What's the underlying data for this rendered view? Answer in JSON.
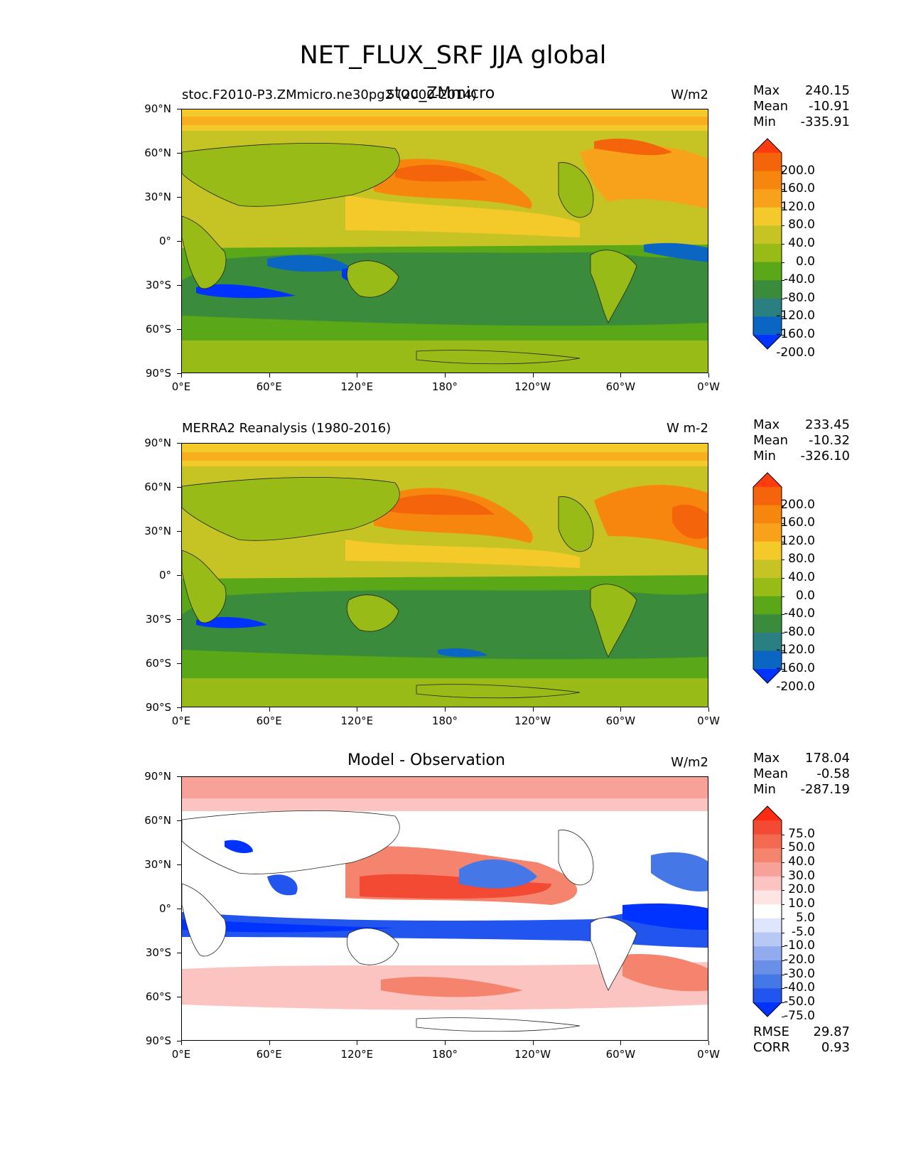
{
  "figure": {
    "title": "NET_FLUX_SRF JJA global"
  },
  "lat_ticks": [
    "90°N",
    "60°N",
    "30°N",
    "0°",
    "30°S",
    "60°S",
    "90°S"
  ],
  "lon_ticks": [
    "0°E",
    "60°E",
    "120°E",
    "180°",
    "120°W",
    "60°W",
    "0°W"
  ],
  "stat_labels": {
    "max": "Max",
    "mean": "Mean",
    "min": "Min",
    "rmse": "RMSE",
    "corr": "CORR"
  },
  "panels": [
    {
      "left_label": "stoc.F2010-P3.ZMmicro.ne30pg2 (2000-2014)",
      "center_label": "stoc_ZMmicro",
      "units": "W/m2",
      "stats": {
        "max": "240.15",
        "mean": "-10.91",
        "min": "-335.91"
      },
      "colorbar_labels": [
        "200.0",
        "160.0",
        "120.0",
        "80.0",
        "40.0",
        "0.0",
        "-40.0",
        "-80.0",
        "-120.0",
        "-160.0",
        "-200.0"
      ]
    },
    {
      "left_label": "MERRA2 Reanalysis (1980-2016)",
      "center_label": "",
      "units": "W m-2",
      "stats": {
        "max": "233.45",
        "mean": "-10.32",
        "min": "-326.10"
      },
      "colorbar_labels": [
        "200.0",
        "160.0",
        "120.0",
        "80.0",
        "40.0",
        "0.0",
        "-40.0",
        "-80.0",
        "-120.0",
        "-160.0",
        "-200.0"
      ]
    },
    {
      "left_label": "",
      "center_label": "Model - Observation",
      "units": "W/m2",
      "stats": {
        "max": "178.04",
        "mean": "-0.58",
        "min": "-287.19",
        "rmse": "29.87",
        "corr": "0.93"
      },
      "colorbar_labels": [
        "75.0",
        "50.0",
        "40.0",
        "30.0",
        "20.0",
        "10.0",
        "5.0",
        "-5.0",
        "-10.0",
        "-20.0",
        "-30.0",
        "-40.0",
        "-50.0",
        "-75.0"
      ]
    }
  ],
  "colors": {
    "abs_scale": [
      "#0033ff",
      "#0a66c2",
      "#2a8080",
      "#3a8c3c",
      "#5aa817",
      "#98bb17",
      "#c6c424",
      "#f4c92a",
      "#f8a21b",
      "#f7860f",
      "#f4640a",
      "#ff3c10"
    ],
    "diff_scale": [
      "#0033ff",
      "#2255ee",
      "#4677e6",
      "#6a8fe6",
      "#92aaee",
      "#b8c8f4",
      "#dfe6fb",
      "#ffffff",
      "#ffe4e4",
      "#fcc4c0",
      "#f8a199",
      "#f5846f",
      "#f46a50",
      "#f24a33",
      "#ff2a12"
    ]
  }
}
